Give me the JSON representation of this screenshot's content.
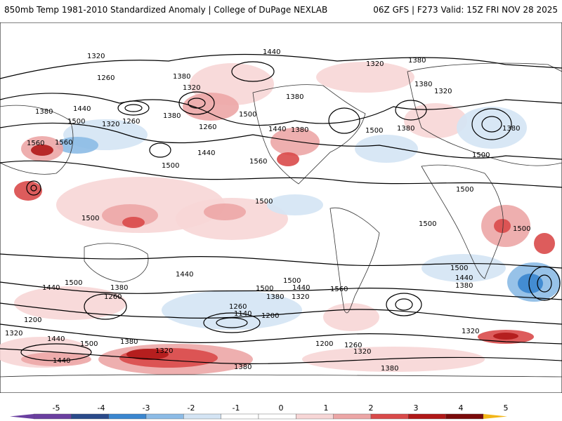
{
  "header": {
    "left": "850mb Temp 1981-2010 Standardized Anomaly | College of DuPage NEXLAB",
    "right": "06Z GFS | F273 Valid: 15Z FRI NOV 28 2025"
  },
  "colors": {
    "neg5": "#6a3fa0",
    "neg4": "#2a4a8a",
    "neg3": "#3a86cf",
    "neg2": "#8cbbe6",
    "neg1": "#d4e4f4",
    "zero": "#ffffff",
    "pos1": "#f7d6d6",
    "pos2": "#eca6a6",
    "pos3": "#d94a4a",
    "pos4": "#b01818",
    "pos5": "#7a0a0a",
    "pos6": "#f2b619"
  },
  "colorbar": {
    "ticks": [
      "-5",
      "-4",
      "-3",
      "-2",
      "-1",
      "0",
      "1",
      "2",
      "3",
      "4",
      "5"
    ]
  },
  "contour_labels": [
    "1320",
    "1440",
    "1380",
    "1320",
    "1380",
    "1260",
    "1380",
    "1320",
    "1380",
    "1320",
    "1380",
    "1440",
    "1500",
    "1320",
    "1260",
    "1380",
    "1500",
    "1260",
    "1380",
    "1440",
    "1380",
    "1500",
    "1560",
    "1560",
    "1440",
    "1500",
    "1560",
    "1500",
    "1380",
    "1500",
    "1500",
    "1500",
    "1500",
    "1500",
    "1440",
    "1500",
    "1500",
    "1440",
    "1380",
    "1440",
    "1500",
    "1380",
    "1260",
    "1500",
    "1440",
    "1380",
    "1320",
    "1560",
    "1200",
    "1260",
    "1140",
    "1200",
    "1320",
    "1440",
    "1500",
    "1380",
    "1320",
    "1200",
    "1260",
    "1320",
    "1440",
    "1380",
    "1320",
    "1380"
  ]
}
